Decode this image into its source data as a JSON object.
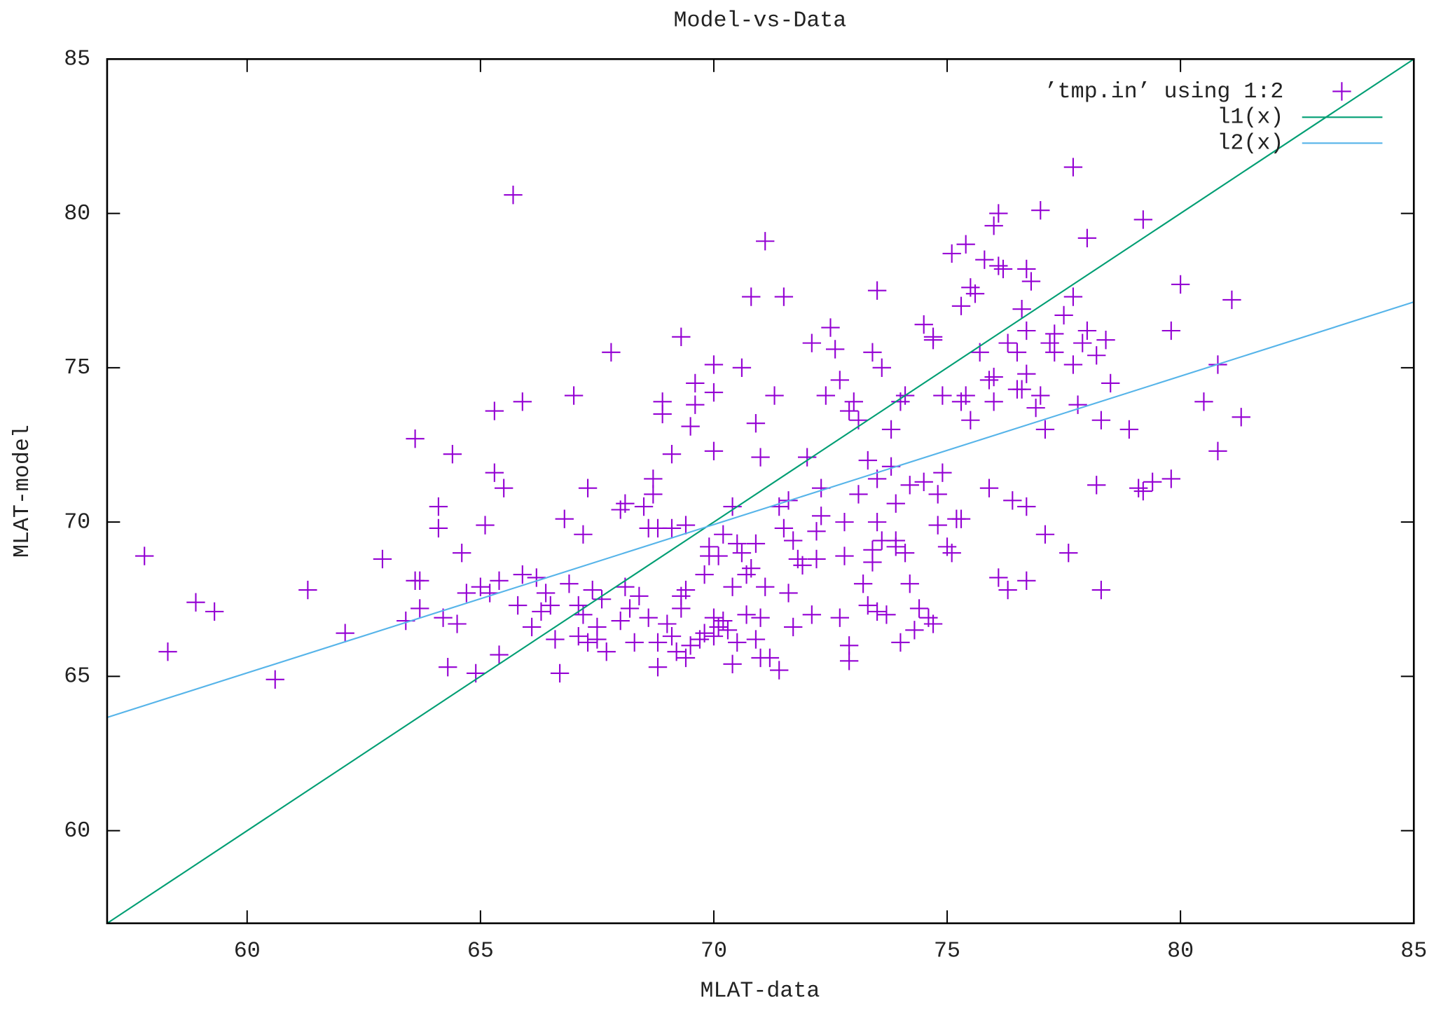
{
  "chart_data": {
    "type": "scatter",
    "title": "Model-vs-Data",
    "xlabel": "MLAT-data",
    "ylabel": "MLAT-model",
    "xlim": [
      57,
      85
    ],
    "ylim": [
      57,
      85
    ],
    "xticks": [
      60,
      65,
      70,
      75,
      80,
      85
    ],
    "yticks": [
      60,
      65,
      70,
      75,
      80,
      85
    ],
    "legend": "top right",
    "series": [
      {
        "name": "’tmp.in’ using 1:2",
        "color": "#9400d3",
        "type": "scatter",
        "x": [
          57.8,
          58.3,
          58.9,
          59.3,
          60.6,
          61.3,
          62.1,
          62.9,
          63.4,
          63.6,
          63.6,
          63.7,
          63.7,
          64.1,
          64.1,
          64.2,
          64.3,
          64.4,
          64.5,
          64.6,
          64.7,
          64.9,
          65.0,
          65.1,
          65.2,
          65.3,
          65.3,
          65.4,
          65.4,
          65.5,
          65.7,
          65.8,
          65.9,
          65.9,
          66.1,
          66.2,
          66.3,
          66.4,
          66.5,
          66.6,
          66.7,
          66.8,
          66.9,
          67.0,
          67.1,
          67.1,
          67.2,
          67.2,
          67.3,
          67.3,
          67.4,
          67.5,
          67.5,
          67.6,
          67.7,
          67.8,
          68.0,
          68.0,
          68.1,
          68.1,
          68.2,
          68.3,
          68.4,
          68.5,
          68.6,
          68.6,
          68.7,
          68.7,
          68.8,
          68.8,
          68.8,
          68.9,
          68.9,
          69.0,
          69.1,
          69.1,
          69.1,
          69.2,
          69.3,
          69.3,
          69.3,
          69.4,
          69.4,
          69.4,
          69.5,
          69.5,
          69.6,
          69.6,
          69.7,
          69.8,
          69.8,
          69.9,
          69.9,
          70.0,
          70.0,
          70.0,
          70.0,
          70.0,
          70.1,
          70.1,
          70.2,
          70.2,
          70.3,
          70.4,
          70.4,
          70.4,
          70.5,
          70.5,
          70.6,
          70.6,
          70.7,
          70.7,
          70.8,
          70.8,
          70.9,
          70.9,
          70.9,
          71.0,
          71.0,
          71.0,
          71.1,
          71.1,
          71.2,
          71.3,
          71.4,
          71.4,
          71.5,
          71.5,
          71.6,
          71.6,
          71.7,
          71.7,
          71.8,
          71.9,
          72.0,
          72.1,
          72.1,
          72.2,
          72.2,
          72.3,
          72.3,
          72.4,
          72.5,
          72.6,
          72.7,
          72.7,
          72.8,
          72.8,
          72.9,
          72.9,
          72.9,
          73.0,
          73.1,
          73.1,
          73.2,
          73.3,
          73.3,
          73.4,
          73.4,
          73.4,
          73.5,
          73.5,
          73.5,
          73.5,
          73.6,
          73.6,
          73.7,
          73.8,
          73.8,
          73.9,
          73.9,
          73.9,
          74.0,
          74.0,
          74.1,
          74.1,
          74.2,
          74.2,
          74.3,
          74.4,
          74.5,
          74.5,
          74.6,
          74.7,
          74.7,
          74.7,
          74.8,
          74.8,
          74.9,
          74.9,
          75.0,
          75.1,
          75.1,
          75.2,
          75.3,
          75.3,
          75.3,
          75.4,
          75.4,
          75.5,
          75.5,
          75.6,
          75.7,
          75.8,
          75.9,
          75.9,
          76.0,
          76.0,
          76.0,
          76.1,
          76.1,
          76.1,
          76.2,
          76.3,
          76.3,
          76.4,
          76.5,
          76.5,
          76.6,
          76.6,
          76.7,
          76.7,
          76.7,
          76.7,
          76.7,
          76.8,
          76.9,
          77.0,
          77.0,
          77.1,
          77.1,
          77.2,
          77.3,
          77.3,
          77.5,
          77.6,
          77.7,
          77.7,
          77.7,
          77.8,
          77.9,
          78.0,
          78.0,
          78.2,
          78.2,
          78.3,
          78.3,
          78.4,
          78.5,
          78.9,
          79.1,
          79.2,
          79.2,
          79.4,
          79.8,
          79.8,
          80.0,
          80.5,
          80.8,
          80.8,
          81.1,
          81.3
        ],
        "values": [
          68.9,
          65.8,
          67.4,
          67.1,
          64.9,
          67.8,
          66.4,
          68.8,
          66.8,
          72.7,
          68.1,
          68.1,
          67.2,
          70.5,
          69.8,
          66.9,
          65.3,
          72.2,
          66.7,
          69.0,
          67.7,
          65.1,
          67.9,
          69.9,
          67.7,
          71.6,
          73.6,
          68.1,
          65.7,
          71.1,
          80.6,
          67.3,
          73.9,
          68.3,
          66.6,
          68.2,
          67.1,
          67.7,
          67.3,
          66.2,
          65.1,
          70.1,
          68.0,
          74.1,
          67.3,
          66.3,
          69.6,
          67.0,
          71.1,
          66.1,
          67.8,
          66.6,
          66.2,
          67.5,
          65.8,
          75.5,
          70.4,
          66.8,
          70.6,
          67.9,
          67.2,
          66.1,
          67.6,
          70.5,
          69.8,
          66.9,
          71.4,
          70.9,
          65.3,
          66.1,
          69.8,
          73.5,
          73.9,
          66.7,
          69.8,
          66.3,
          72.2,
          65.8,
          67.6,
          67.2,
          76.0,
          65.6,
          69.9,
          67.8,
          73.1,
          66.0,
          74.5,
          73.8,
          66.2,
          66.4,
          68.3,
          68.9,
          69.2,
          72.3,
          75.1,
          74.2,
          66.9,
          66.3,
          68.9,
          66.6,
          66.8,
          69.6,
          66.5,
          65.4,
          70.5,
          67.9,
          66.1,
          69.3,
          75.0,
          69.0,
          68.3,
          67.0,
          68.5,
          77.3,
          73.2,
          69.3,
          66.2,
          65.6,
          72.1,
          66.9,
          79.1,
          67.9,
          65.6,
          74.1,
          70.5,
          65.2,
          69.8,
          77.3,
          67.7,
          70.7,
          69.4,
          66.6,
          68.8,
          68.6,
          72.1,
          67.0,
          75.8,
          68.8,
          69.7,
          71.1,
          70.2,
          74.1,
          76.3,
          75.6,
          74.6,
          66.9,
          68.9,
          70.0,
          66.0,
          65.5,
          73.6,
          73.9,
          70.9,
          73.3,
          68.0,
          72.0,
          67.3,
          68.7,
          69.1,
          75.5,
          70.0,
          67.1,
          71.4,
          77.5,
          75.0,
          69.4,
          67.0,
          71.8,
          73.0,
          69.4,
          70.6,
          69.2,
          73.9,
          66.1,
          69.0,
          74.1,
          71.2,
          68.0,
          66.5,
          67.2,
          71.3,
          76.4,
          66.9,
          75.9,
          76.0,
          66.7,
          70.9,
          69.9,
          74.1,
          71.6,
          69.2,
          69.0,
          78.7,
          70.1,
          70.1,
          73.9,
          77.0,
          74.1,
          79.0,
          77.6,
          73.3,
          77.4,
          75.5,
          78.5,
          71.1,
          74.6,
          79.6,
          74.7,
          73.9,
          80.0,
          78.3,
          68.2,
          78.2,
          75.8,
          67.8,
          70.7,
          75.5,
          74.3,
          76.9,
          74.3,
          78.2,
          76.2,
          70.5,
          74.8,
          68.1,
          77.8,
          73.7,
          80.1,
          74.1,
          69.6,
          73.0,
          75.8,
          75.5,
          76.1,
          76.7,
          69.0,
          77.3,
          81.5,
          75.1,
          73.8,
          75.8,
          79.2,
          76.2,
          71.2,
          75.4,
          67.8,
          73.3,
          75.9,
          74.5,
          73.0,
          71.1,
          71.0,
          79.8,
          71.3,
          71.4,
          76.2,
          77.7,
          73.9,
          72.3,
          75.1,
          77.2,
          73.4
        ]
      },
      {
        "name": "l1(x)",
        "color": "#009e73",
        "type": "line",
        "x": [
          57,
          85
        ],
        "values": [
          57,
          85
        ]
      },
      {
        "name": "l2(x)",
        "color": "#56b4e9",
        "type": "line",
        "x": [
          57,
          85
        ],
        "values": [
          63.67,
          77.13
        ]
      }
    ]
  }
}
